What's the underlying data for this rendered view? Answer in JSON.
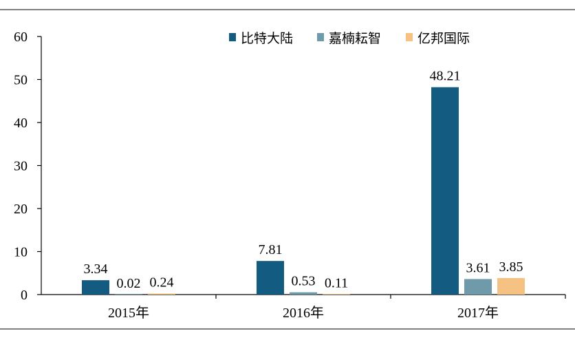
{
  "chart_data": {
    "type": "bar",
    "categories": [
      "2015年",
      "2016年",
      "2017年"
    ],
    "series": [
      {
        "name": "比特大陆",
        "values": [
          3.34,
          7.81,
          48.21
        ],
        "color": "#135b80"
      },
      {
        "name": "嘉楠耘智",
        "values": [
          0.02,
          0.53,
          3.61
        ],
        "color": "#6f9aaa"
      },
      {
        "name": "亿邦国际",
        "values": [
          0.24,
          0.11,
          3.85
        ],
        "color": "#f5c283"
      }
    ],
    "data_labels": [
      [
        "3.34",
        "7.81",
        "48.21"
      ],
      [
        "0.02",
        "0.53",
        "3.61"
      ],
      [
        "0.24",
        "0.11",
        "3.85"
      ]
    ],
    "ylim": [
      0,
      60
    ],
    "yticks": [
      "0",
      "10",
      "20",
      "30",
      "40",
      "50",
      "60"
    ],
    "title": "",
    "xlabel": "",
    "ylabel": "",
    "grid": false,
    "legend_position": "top-right"
  }
}
